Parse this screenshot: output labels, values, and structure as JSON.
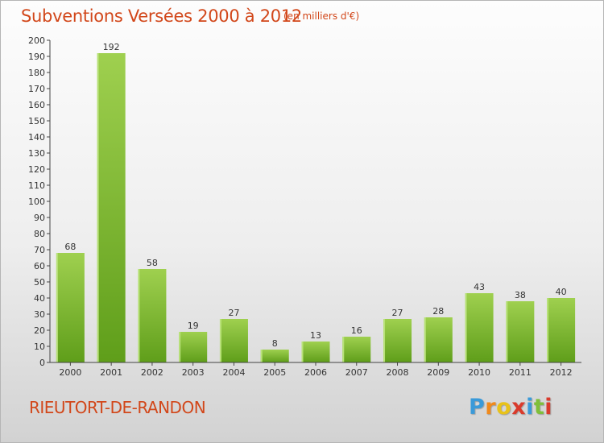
{
  "header": {
    "title": "Subventions Versées 2000 à 2012",
    "subtitle": "(en milliers d'€)"
  },
  "footer": {
    "commune": "RIEUTORT-DE-RANDON",
    "logo": {
      "letters": [
        "P",
        "r",
        "o",
        "x",
        "i",
        "t",
        "i"
      ],
      "colors": [
        "#3a9ad9",
        "#f08a1c",
        "#e8c21a",
        "#d93a2b",
        "#3a9ad9",
        "#7fbf3a",
        "#d93a2b"
      ]
    }
  },
  "colors": {
    "bar_top": "#9fd04f",
    "bar_bottom": "#5f9e1a",
    "bar_highlight": "#b9e27a",
    "text_accent": "#d2471a"
  },
  "chart_data": {
    "type": "bar",
    "title": "Subventions Versées 2000 à 2012",
    "subtitle": "(en milliers d'€)",
    "categories": [
      "2000",
      "2001",
      "2002",
      "2003",
      "2004",
      "2005",
      "2006",
      "2007",
      "2008",
      "2009",
      "2010",
      "2011",
      "2012"
    ],
    "values": [
      68,
      192,
      58,
      19,
      27,
      8,
      13,
      16,
      27,
      28,
      43,
      38,
      40
    ],
    "y_ticks": [
      0,
      10,
      20,
      30,
      40,
      50,
      60,
      70,
      80,
      90,
      100,
      110,
      120,
      130,
      140,
      150,
      160,
      170,
      180,
      190,
      200
    ],
    "ylim": [
      0,
      200
    ],
    "xlabel": "",
    "ylabel": "",
    "grid": false,
    "data_labels": true
  }
}
